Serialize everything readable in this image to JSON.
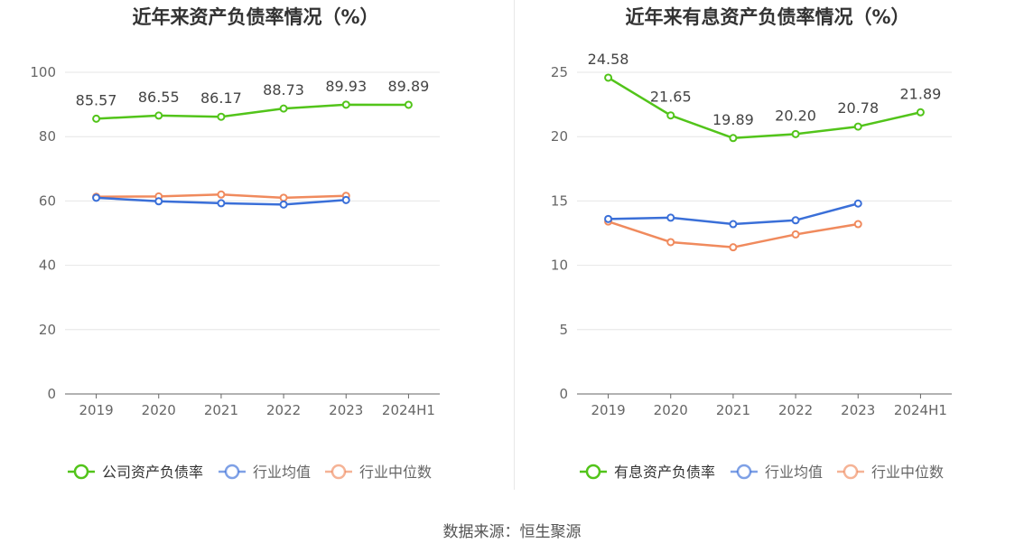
{
  "source_text": "数据来源：恒生聚源",
  "chart_data": [
    {
      "type": "line",
      "title": "近年来资产负债率情况（%）",
      "categories": [
        "2019",
        "2020",
        "2021",
        "2022",
        "2023",
        "2024H1"
      ],
      "ylim": [
        0,
        100
      ],
      "yticks": [
        0,
        20,
        40,
        60,
        80,
        100
      ],
      "grid": true,
      "legend_position": "bottom",
      "series": [
        {
          "name": "公司资产负债率",
          "color": "#52c41a",
          "values": [
            85.57,
            86.55,
            86.17,
            88.73,
            89.93,
            89.89
          ],
          "labels": [
            "85.57",
            "86.55",
            "86.17",
            "88.73",
            "89.93",
            "89.89"
          ]
        },
        {
          "name": "行业均值",
          "color": "#3a6fd8",
          "values": [
            61.0,
            59.9,
            59.3,
            58.9,
            60.3,
            null
          ]
        },
        {
          "name": "行业中位数",
          "color": "#f08a5d",
          "values": [
            61.3,
            61.4,
            62.0,
            61.0,
            61.6,
            null
          ]
        }
      ]
    },
    {
      "type": "line",
      "title": "近年来有息资产负债率情况（%）",
      "categories": [
        "2019",
        "2020",
        "2021",
        "2022",
        "2023",
        "2024H1"
      ],
      "ylim": [
        0,
        25
      ],
      "yticks": [
        0,
        5,
        10,
        15,
        20,
        25
      ],
      "grid": true,
      "legend_position": "bottom",
      "series": [
        {
          "name": "有息资产负债率",
          "color": "#52c41a",
          "values": [
            24.58,
            21.65,
            19.89,
            20.2,
            20.78,
            21.89
          ],
          "labels": [
            "24.58",
            "21.65",
            "19.89",
            "20.20",
            "20.78",
            "21.89"
          ]
        },
        {
          "name": "行业均值",
          "color": "#3a6fd8",
          "values": [
            13.6,
            13.7,
            13.2,
            13.5,
            14.8,
            null
          ]
        },
        {
          "name": "行业中位数",
          "color": "#f08a5d",
          "values": [
            13.4,
            11.8,
            11.4,
            12.4,
            13.2,
            null
          ]
        }
      ]
    }
  ]
}
